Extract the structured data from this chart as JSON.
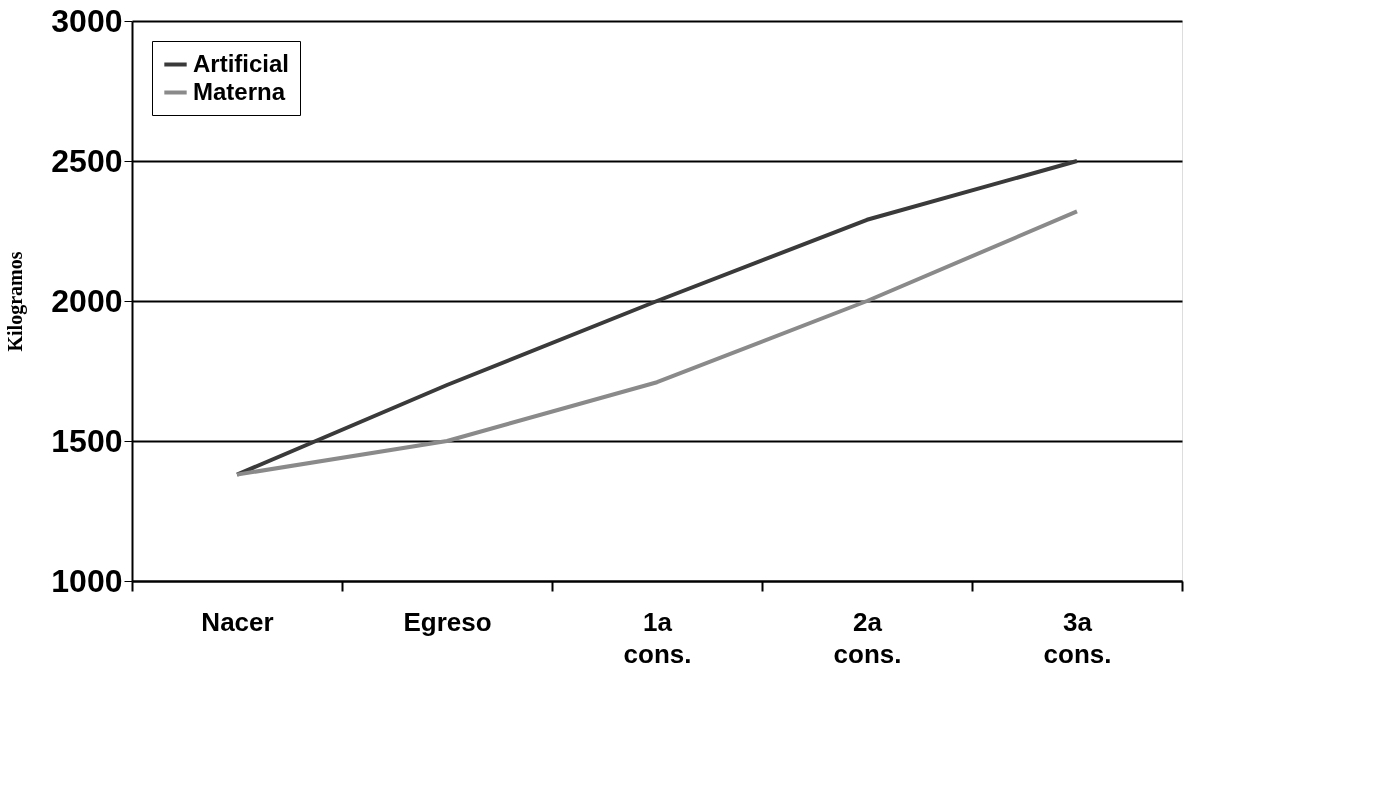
{
  "chart_data": {
    "type": "line",
    "ylabel": "Kilogramos",
    "categories": [
      "Nacer",
      "Egreso",
      "1a cons.",
      "2a cons.",
      "3a cons."
    ],
    "series": [
      {
        "name": "Artificial",
        "color": "#3a3a3a",
        "values": [
          1380,
          1700,
          2000,
          2290,
          2500
        ]
      },
      {
        "name": "Materna",
        "color": "#8a8a8a",
        "values": [
          1380,
          1500,
          1710,
          2000,
          2320
        ]
      }
    ],
    "ylim": [
      1000,
      3000
    ],
    "yticks": [
      1000,
      1500,
      2000,
      2500,
      3000
    ],
    "grid": "y",
    "legend": "top left",
    "marker": "none",
    "line_style": "solid"
  }
}
